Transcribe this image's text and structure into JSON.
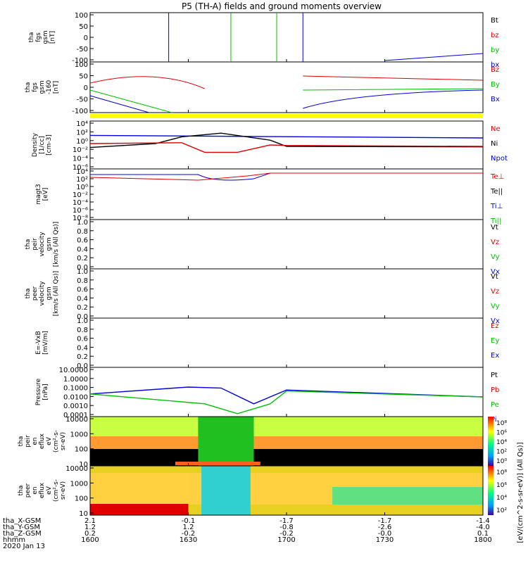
{
  "colors": {
    "black": "#000000",
    "red": "#e00000",
    "green": "#00c000",
    "blue": "#0000e0",
    "yellow": "#ffff00"
  },
  "chart_data": {
    "type": "line",
    "title": "P5 (TH-A) fields and ground moments overview",
    "date": "2020 Jan 13",
    "x_range": [
      1600,
      1800
    ],
    "x_tick_values": [
      1600,
      1630,
      1700,
      1730,
      1800
    ],
    "panels": [
      {
        "id": "fgs",
        "ylabel": [
          "tha",
          "fgs",
          "gsm",
          "[nT]"
        ],
        "yticks": [
          "100",
          "50",
          "0",
          "-50",
          "-100"
        ],
        "legend": [
          {
            "text": "Bt",
            "color": "black"
          },
          {
            "text": "bz",
            "color": "red"
          },
          {
            "text": "by",
            "color": "green"
          },
          {
            "text": "bx",
            "color": "blue"
          }
        ]
      },
      {
        "id": "fgs2",
        "ylabel": [
          "tha",
          "fgs",
          "gsm",
          "-160",
          "[nT]"
        ],
        "yticks": [
          "100",
          "50",
          "0",
          "-50",
          "-100"
        ],
        "legend": [
          {
            "text": "Bz",
            "color": "red"
          },
          {
            "text": "By",
            "color": "green"
          },
          {
            "text": "Bx",
            "color": "blue"
          }
        ]
      },
      {
        "id": "density",
        "ylabel": [
          "Density",
          "[1/cc]",
          "[cm-3]"
        ],
        "yticks": [
          "10⁴",
          "10²",
          "10⁰",
          "10⁻²",
          "10⁻⁴",
          "10⁻⁶"
        ],
        "legend": [
          {
            "text": "Ne",
            "color": "red"
          },
          {
            "text": "Ni",
            "color": "black"
          },
          {
            "text": "Npot",
            "color": "blue"
          }
        ]
      },
      {
        "id": "temp",
        "ylabel": [
          "magt3",
          "[eV]"
        ],
        "yticks": [
          "10⁴",
          "10²",
          "10⁰",
          "10⁻²",
          "10⁻⁴",
          "10⁻⁶",
          "10⁻⁸"
        ],
        "legend": [
          {
            "text": "Te⊥",
            "color": "red"
          },
          {
            "text": "Te||",
            "color": "black"
          },
          {
            "text": "Ti⊥",
            "color": "blue"
          },
          {
            "text": "Ti||",
            "color": "green"
          }
        ]
      },
      {
        "id": "peir_vel",
        "ylabel": [
          "tha",
          "peir",
          "velocity",
          "gsm",
          "[km/s (All Qs)]"
        ],
        "yticks": [
          "1.0",
          "0.8",
          "0.6",
          "0.4",
          "0.2",
          "0.0"
        ],
        "legend": [
          {
            "text": "Vt",
            "color": "black"
          },
          {
            "text": "Vz",
            "color": "red"
          },
          {
            "text": "Vy",
            "color": "green"
          },
          {
            "text": "Vx",
            "color": "blue"
          }
        ]
      },
      {
        "id": "peer_vel",
        "ylabel": [
          "tha",
          "peer",
          "velocity",
          "gsm",
          "[km/s (All Qs)]"
        ],
        "yticks": [
          "1.0",
          "0.8",
          "0.6",
          "0.4",
          "0.2",
          "0.0"
        ],
        "legend": [
          {
            "text": "Vt",
            "color": "black"
          },
          {
            "text": "Vz",
            "color": "red"
          },
          {
            "text": "Vy",
            "color": "green"
          },
          {
            "text": "Vx",
            "color": "blue"
          }
        ]
      },
      {
        "id": "efield",
        "ylabel": [
          "E=-VxB",
          "[mV/m]"
        ],
        "yticks": [
          "1.0",
          "0.8",
          "0.6",
          "0.4",
          "0.2",
          "0.0"
        ],
        "legend": [
          {
            "text": "Ez",
            "color": "red"
          },
          {
            "text": "Ey",
            "color": "green"
          },
          {
            "text": "Ex",
            "color": "blue"
          }
        ]
      },
      {
        "id": "pressure",
        "ylabel": [
          "Pressure",
          "[nPa]"
        ],
        "yticks": [
          "10.0000",
          "1.0000",
          "0.1000",
          "0.0100",
          "0.0010",
          "0.0001"
        ],
        "legend": [
          {
            "text": "Pt",
            "color": "black"
          },
          {
            "text": "Pb",
            "color": "red"
          },
          {
            "text": "Pe",
            "color": "green"
          },
          {
            "text": "Pi",
            "color": "blue"
          }
        ]
      },
      {
        "id": "peir_spec",
        "ylabel": [
          "tha",
          "peir",
          "en",
          "eflux",
          "eV",
          "(cm²-s-",
          "sr-eV)"
        ],
        "yticks": [
          "10000",
          "1000",
          "100",
          "10"
        ],
        "colorbar_ticks": [
          "10⁸",
          "10⁶",
          "10⁴",
          "10²",
          "10⁰"
        ]
      },
      {
        "id": "peer_spec",
        "ylabel": [
          "tha",
          "peer",
          "en",
          "eflux",
          "eV",
          "(cm²-s-",
          "sr-eV)"
        ],
        "yticks": [
          "10000",
          "1000",
          "100",
          "10"
        ],
        "colorbar_ticks": [
          "10⁸",
          "10⁶",
          "10⁴",
          "10²"
        ]
      }
    ],
    "colorbar_label": "[eV/(cm^2-s-sr-eV)] (All Qs)]",
    "ephemeris": [
      {
        "label": "tha_X-GSM",
        "values": [
          "2.1",
          "-0.1",
          "-1.7",
          "-1.7",
          "-1.4"
        ]
      },
      {
        "label": "tha_Y-GSM",
        "values": [
          "1.2",
          "1.2",
          "-0.8",
          "-2.6",
          "-4.0"
        ]
      },
      {
        "label": "tha_Z-GSM",
        "values": [
          "0.2",
          "-0.2",
          "-0.2",
          "-0.0",
          "0.1"
        ]
      },
      {
        "label": "hhmm",
        "values": [
          "1600",
          "1630",
          "1700",
          "1730",
          "1800"
        ]
      }
    ],
    "series_approx": {
      "density_Ni_black": [
        [
          1600,
          0.03
        ],
        [
          1620,
          0.2
        ],
        [
          1628,
          5
        ],
        [
          1640,
          30
        ],
        [
          1655,
          1
        ],
        [
          1700,
          0.05
        ],
        [
          1800,
          0.04
        ]
      ],
      "density_Ne_red": [
        [
          1600,
          0.2
        ],
        [
          1628,
          0.3
        ],
        [
          1635,
          0.003
        ],
        [
          1645,
          0.003
        ],
        [
          1655,
          0.1
        ],
        [
          1700,
          0.08
        ],
        [
          1800,
          0.05
        ]
      ],
      "density_Npot_blue": [
        [
          1600,
          10
        ],
        [
          1800,
          3
        ]
      ],
      "pressure_Pi_blue": [
        [
          1600,
          0.02
        ],
        [
          1630,
          0.1
        ],
        [
          1640,
          0.08
        ],
        [
          1650,
          0.002
        ],
        [
          1700,
          0.05
        ],
        [
          1800,
          0.01
        ]
      ],
      "pressure_Pe_green": [
        [
          1600,
          0.02
        ],
        [
          1635,
          0.002
        ],
        [
          1645,
          0.0002
        ],
        [
          1655,
          0.002
        ],
        [
          1700,
          0.04
        ],
        [
          1800,
          0.01
        ]
      ]
    }
  }
}
